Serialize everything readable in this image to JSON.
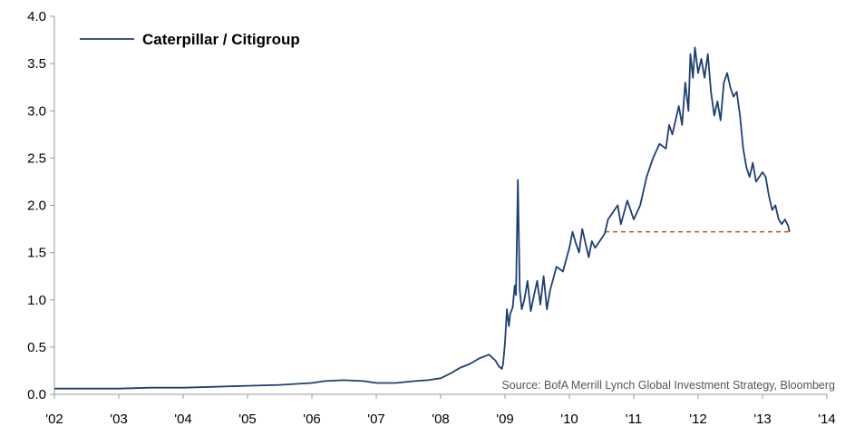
{
  "chart_data": {
    "type": "line",
    "title": "",
    "xlabel": "",
    "ylabel": "",
    "xlim": [
      2002,
      2014
    ],
    "ylim": [
      0,
      4
    ],
    "grid": false,
    "legend_position": "top-left",
    "x_tick_labels": [
      "'02",
      "'03",
      "'04",
      "'05",
      "'06",
      "'07",
      "'08",
      "'09",
      "'10",
      "'11",
      "'12",
      "'13",
      "'14"
    ],
    "x_tick_values": [
      2002,
      2003,
      2004,
      2005,
      2006,
      2007,
      2008,
      2009,
      2010,
      2011,
      2012,
      2013,
      2014
    ],
    "y_tick_labels": [
      "0.0",
      "0.5",
      "1.0",
      "1.5",
      "2.0",
      "2.5",
      "3.0",
      "3.5",
      "4.0"
    ],
    "y_tick_values": [
      0,
      0.5,
      1.0,
      1.5,
      2.0,
      2.5,
      3.0,
      3.5,
      4.0
    ],
    "series": [
      {
        "name": "Caterpillar / Citigroup",
        "color": "#1f3f73",
        "x": [
          2002.0,
          2002.5,
          2003.0,
          2003.5,
          2004.0,
          2004.5,
          2005.0,
          2005.5,
          2006.0,
          2006.2,
          2006.5,
          2006.8,
          2007.0,
          2007.3,
          2007.6,
          2007.8,
          2008.0,
          2008.15,
          2008.3,
          2008.45,
          2008.6,
          2008.75,
          2008.85,
          2008.9,
          2008.95,
          2008.97,
          2009.0,
          2009.03,
          2009.06,
          2009.08,
          2009.12,
          2009.15,
          2009.17,
          2009.2,
          2009.23,
          2009.26,
          2009.3,
          2009.35,
          2009.4,
          2009.45,
          2009.5,
          2009.55,
          2009.6,
          2009.65,
          2009.7,
          2009.8,
          2009.9,
          2010.0,
          2010.05,
          2010.1,
          2010.15,
          2010.2,
          2010.3,
          2010.35,
          2010.4,
          2010.5,
          2010.55,
          2010.6,
          2010.7,
          2010.75,
          2010.8,
          2010.9,
          2011.0,
          2011.1,
          2011.2,
          2011.3,
          2011.4,
          2011.5,
          2011.55,
          2011.6,
          2011.7,
          2011.75,
          2011.8,
          2011.85,
          2011.88,
          2011.92,
          2011.95,
          2012.0,
          2012.05,
          2012.1,
          2012.15,
          2012.2,
          2012.25,
          2012.3,
          2012.35,
          2012.4,
          2012.45,
          2012.5,
          2012.55,
          2012.6,
          2012.65,
          2012.7,
          2012.75,
          2012.8,
          2012.85,
          2012.9,
          2013.0,
          2013.05,
          2013.1,
          2013.15,
          2013.2,
          2013.25,
          2013.3,
          2013.35,
          2013.4,
          2013.42
        ],
        "y": [
          0.06,
          0.06,
          0.06,
          0.07,
          0.07,
          0.08,
          0.09,
          0.1,
          0.12,
          0.14,
          0.15,
          0.14,
          0.12,
          0.12,
          0.14,
          0.15,
          0.17,
          0.22,
          0.28,
          0.32,
          0.38,
          0.42,
          0.36,
          0.3,
          0.27,
          0.32,
          0.55,
          0.9,
          0.72,
          0.85,
          0.92,
          1.15,
          1.05,
          2.27,
          1.1,
          0.9,
          1.0,
          1.2,
          0.88,
          1.05,
          1.2,
          0.95,
          1.25,
          0.9,
          1.1,
          1.35,
          1.3,
          1.55,
          1.72,
          1.6,
          1.5,
          1.75,
          1.45,
          1.62,
          1.55,
          1.65,
          1.7,
          1.85,
          1.95,
          2.0,
          1.8,
          2.05,
          1.85,
          2.0,
          2.3,
          2.5,
          2.65,
          2.6,
          2.85,
          2.75,
          3.05,
          2.85,
          3.3,
          3.0,
          3.6,
          3.35,
          3.67,
          3.4,
          3.55,
          3.35,
          3.6,
          3.2,
          2.95,
          3.1,
          2.9,
          3.3,
          3.4,
          3.25,
          3.15,
          3.2,
          2.95,
          2.6,
          2.4,
          2.3,
          2.45,
          2.25,
          2.35,
          2.3,
          2.1,
          1.95,
          2.0,
          1.85,
          1.8,
          1.85,
          1.78,
          1.72
        ]
      }
    ],
    "reference_line": {
      "y": 1.72,
      "x_start": 2010.55,
      "x_end": 2013.42,
      "color": "#c0632b",
      "style": "dashed"
    },
    "annotation": "Source: BofA Merrill Lynch Global Investment Strategy, Bloomberg"
  }
}
